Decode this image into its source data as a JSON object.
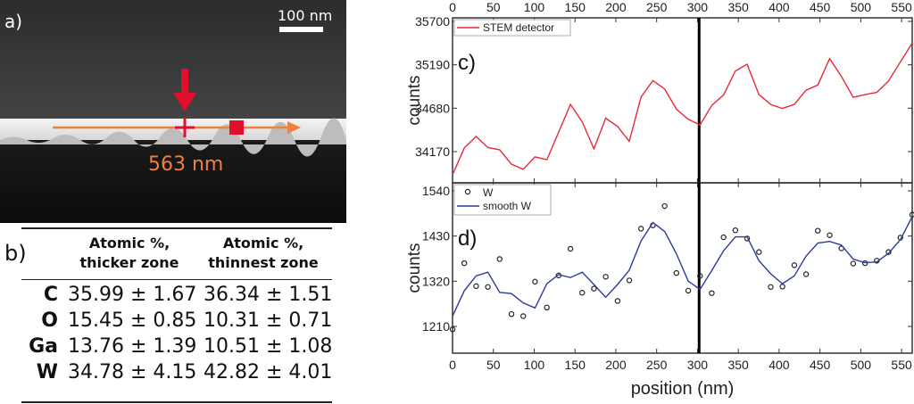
{
  "panel_a": {
    "label": "a)",
    "scale_bar_label": "100 nm",
    "line_length_label": "563 nm",
    "colors": {
      "profile_arrow": "#f08040",
      "marker": "#e0102a"
    }
  },
  "panel_b": {
    "label": "b)",
    "headers": [
      {
        "line1": "Atomic %,",
        "line2": "thicker zone"
      },
      {
        "line1": "Atomic %,",
        "line2": "thinnest zone"
      }
    ],
    "rows": [
      {
        "element": "C",
        "thicker": "35.99 ± 1.67",
        "thinnest": "36.34 ± 1.51"
      },
      {
        "element": "O",
        "thicker": "15.45 ± 0.85",
        "thinnest": "10.31 ±  0.71"
      },
      {
        "element": "Ga",
        "thicker": "13.76 ± 1.39",
        "thinnest": "10.51 ±  1.08"
      },
      {
        "element": "W",
        "thicker": "34.78 ± 4.15",
        "thinnest": "42.82 ±  4.01"
      }
    ]
  },
  "chart_data": [
    {
      "type": "line",
      "panel_label": "c)",
      "title": "",
      "xlabel": "",
      "ylabel": "counts",
      "xlim": [
        0,
        563
      ],
      "ylim": [
        33760,
        35760
      ],
      "xticks": [
        0,
        50,
        100,
        150,
        200,
        250,
        300,
        350,
        400,
        450,
        500,
        550
      ],
      "yticks": [
        34170,
        34680,
        35190,
        35700
      ],
      "marker_line_x": 302,
      "legend": {
        "placement": "top-left",
        "entries": [
          "STEM detector"
        ]
      },
      "series": [
        {
          "name": "STEM detector",
          "color": "#e8293a",
          "style": "line",
          "x": [
            0,
            14.4,
            28.9,
            43.3,
            57.7,
            72.2,
            86.6,
            101,
            115.5,
            129.9,
            144.4,
            158.8,
            173.2,
            187.6,
            202.1,
            216.5,
            230.9,
            245.4,
            259.8,
            274.2,
            288.7,
            303.1,
            317.5,
            332,
            346.4,
            360.8,
            375.3,
            389.7,
            404.1,
            418.6,
            433,
            447.4,
            461.9,
            476.3,
            490.7,
            505.2,
            519.6,
            534,
            548.5,
            563
          ],
          "y": [
            33897,
            34214,
            34348,
            34217,
            34192,
            34021,
            33962,
            34108,
            34075,
            34396,
            34724,
            34520,
            34203,
            34563,
            34465,
            34290,
            34811,
            35004,
            34906,
            34669,
            34549,
            34483,
            34713,
            34837,
            35117,
            35197,
            34840,
            34724,
            34677,
            34724,
            34892,
            34953,
            35263,
            35052,
            34808,
            34840,
            34866,
            35001,
            35223,
            35445
          ]
        }
      ]
    },
    {
      "type": "scatter",
      "panel_label": "d)",
      "title": "",
      "xlabel": "position (nm)",
      "ylabel": "counts",
      "xlim": [
        0,
        563
      ],
      "ylim": [
        1150,
        1560
      ],
      "xticks": [
        0,
        50,
        100,
        150,
        200,
        250,
        300,
        350,
        400,
        450,
        500,
        550
      ],
      "yticks": [
        1210,
        1320,
        1430,
        1540
      ],
      "marker_line_x": 302,
      "legend": {
        "placement": "top-left",
        "entries": [
          "W",
          "smooth W"
        ]
      },
      "series": [
        {
          "name": "W",
          "color": "#222222",
          "style": "open-circle",
          "x": [
            0,
            14.4,
            28.9,
            43.3,
            57.7,
            72.2,
            86.6,
            101,
            115.5,
            129.9,
            144.4,
            158.8,
            173.2,
            187.6,
            202.1,
            216.5,
            230.9,
            245.4,
            259.8,
            274.2,
            288.7,
            303.1,
            317.5,
            332,
            346.4,
            360.8,
            375.3,
            389.7,
            404.1,
            418.6,
            433,
            447.4,
            461.9,
            476.3,
            490.7,
            505.2,
            519.6,
            534,
            548.5,
            563
          ],
          "y": [
            1203,
            1364,
            1308,
            1306,
            1374,
            1240,
            1235,
            1319,
            1256,
            1334,
            1399,
            1292,
            1302,
            1331,
            1272,
            1322,
            1448,
            1456,
            1503,
            1340,
            1297,
            1333,
            1291,
            1427,
            1444,
            1424,
            1391,
            1306,
            1307,
            1359,
            1337,
            1443,
            1432,
            1400,
            1363,
            1364,
            1370,
            1391,
            1426,
            1482
          ]
        },
        {
          "name": "smooth W",
          "color": "#2b3a9e",
          "style": "line",
          "x": [
            0,
            14.4,
            28.9,
            43.3,
            57.7,
            72.2,
            86.6,
            101,
            115.5,
            129.9,
            144.4,
            158.8,
            173.2,
            187.6,
            202.1,
            216.5,
            230.9,
            245.4,
            259.8,
            274.2,
            288.7,
            303.1,
            317.5,
            332,
            346.4,
            360.8,
            375.3,
            389.7,
            404.1,
            418.6,
            433,
            447.4,
            461.9,
            476.3,
            490.7,
            505.2,
            519.6,
            534,
            548.5,
            563
          ],
          "y": [
            1235,
            1297,
            1333,
            1342,
            1293,
            1290,
            1267,
            1255,
            1314,
            1336,
            1329,
            1342,
            1312,
            1281,
            1312,
            1347,
            1418,
            1463,
            1441,
            1387,
            1320,
            1300,
            1346,
            1394,
            1428,
            1428,
            1370,
            1338,
            1314,
            1333,
            1381,
            1413,
            1417,
            1408,
            1374,
            1365,
            1367,
            1388,
            1421,
            1477
          ]
        }
      ]
    }
  ]
}
